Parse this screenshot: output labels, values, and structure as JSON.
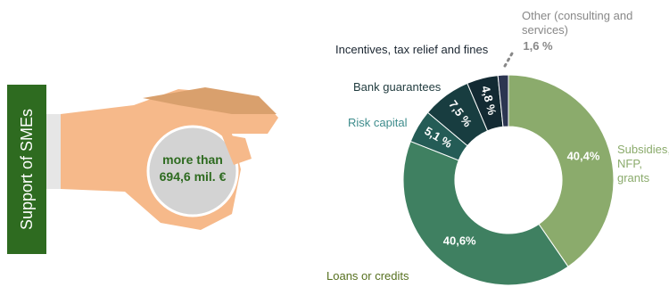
{
  "left": {
    "label": "Support of SMEs",
    "coin_text": "more than 694,6 mil. €"
  },
  "chart_data": {
    "type": "donut",
    "categories": [
      "Subsidies, NFP, grants",
      "Loans or credits",
      "Risk capital",
      "Bank guarantees",
      "Incentives, tax relief and fines",
      "Other (consulting and services)"
    ],
    "values": [
      40.4,
      40.6,
      5.1,
      7.5,
      4.8,
      1.6
    ],
    "value_labels": [
      "40,4%",
      "40,6%",
      "5,1 %",
      "7,5 %",
      "4,8 %",
      "1,6 %"
    ],
    "colors": [
      "#8bab6c",
      "#3f8061",
      "#245c56",
      "#183d40",
      "#132a33",
      "#2c3551"
    ],
    "label_colors": [
      "#8bab6c",
      "#56701f",
      "#3e8c8c",
      "#1f3a3d",
      "#1a2530",
      "#888888"
    ]
  }
}
